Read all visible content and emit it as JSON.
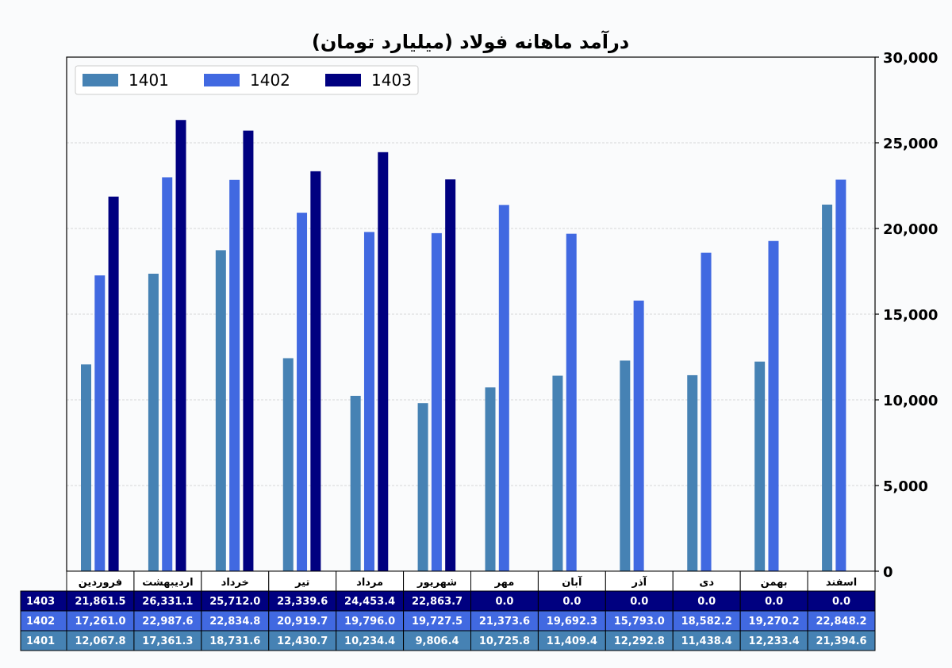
{
  "chart_data": {
    "type": "bar",
    "title": "درآمد ماهانه فولاد (میلیارد تومان)",
    "categories": [
      "فروردین",
      "اردیبهشت",
      "خرداد",
      "تیر",
      "مرداد",
      "شهریور",
      "مهر",
      "آبان",
      "آذر",
      "دی",
      "بهمن",
      "اسفند"
    ],
    "series": [
      {
        "name": "1401",
        "color": "#4682b4",
        "values": [
          12067.8,
          17361.3,
          18731.6,
          12430.7,
          10234.4,
          9806.4,
          10725.8,
          11409.4,
          12292.8,
          11438.4,
          12233.4,
          21394.6
        ]
      },
      {
        "name": "1402",
        "color": "#4169e1",
        "values": [
          17261.0,
          22987.6,
          22834.8,
          20919.7,
          19796.0,
          19727.5,
          21373.6,
          19692.3,
          15793.0,
          18582.2,
          19270.2,
          22848.2
        ]
      },
      {
        "name": "1403",
        "color": "#000080",
        "values": [
          21861.5,
          26331.1,
          25712.0,
          23339.6,
          24453.4,
          22863.7,
          0.0,
          0.0,
          0.0,
          0.0,
          0.0,
          0.0
        ]
      }
    ],
    "ylim": [
      0,
      30000
    ],
    "yticks": [
      0,
      5000,
      10000,
      15000,
      20000,
      25000,
      30000
    ],
    "ytick_labels": [
      "0",
      "5,000",
      "10,000",
      "15,000",
      "20,000",
      "25,000",
      "30,000"
    ],
    "y_axis_side": "right",
    "grid": true,
    "legend_position": "top-left",
    "table": {
      "row_order": [
        "1403",
        "1402",
        "1401"
      ],
      "rows": {
        "1403": [
          "21,861.5",
          "26,331.1",
          "25,712.0",
          "23,339.6",
          "24,453.4",
          "22,863.7",
          "0.0",
          "0.0",
          "0.0",
          "0.0",
          "0.0",
          "0.0"
        ],
        "1402": [
          "17,261.0",
          "22,987.6",
          "22,834.8",
          "20,919.7",
          "19,796.0",
          "19,727.5",
          "21,373.6",
          "19,692.3",
          "15,793.0",
          "18,582.2",
          "19,270.2",
          "22,848.2"
        ],
        "1401": [
          "12,067.8",
          "17,361.3",
          "18,731.6",
          "12,430.7",
          "10,234.4",
          "9,806.4",
          "10,725.8",
          "11,409.4",
          "12,292.8",
          "11,438.4",
          "12,233.4",
          "21,394.6"
        ]
      }
    }
  }
}
